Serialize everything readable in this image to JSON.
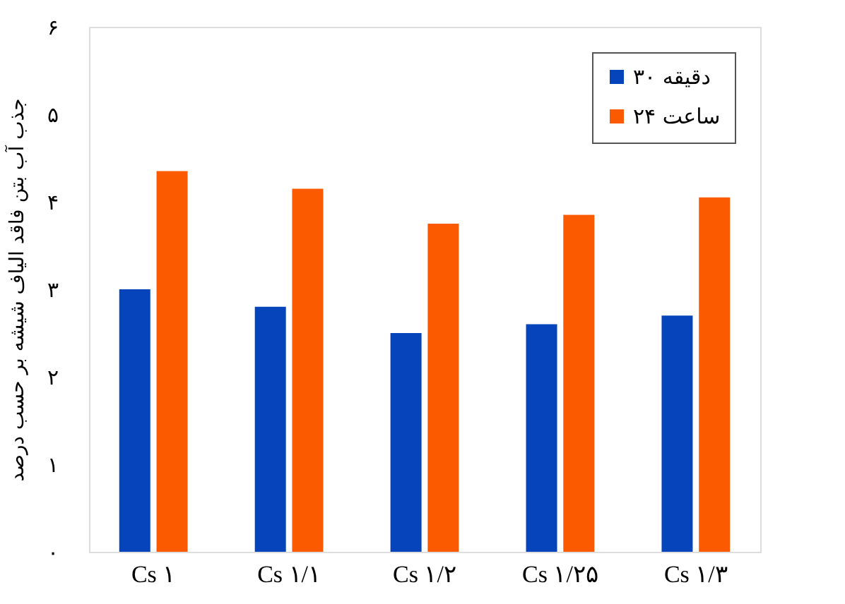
{
  "chart_data": {
    "type": "bar",
    "ylabel": "جذب آب بتن فاقد الیاف شیشه بر حسب درصد",
    "categories": [
      "Cs ۱",
      "Cs ۱/۱",
      "Cs ۱/۲",
      "Cs ۱/۲۵",
      "Cs ۱/۳"
    ],
    "series": [
      {
        "name": "۳۰ دقیقه",
        "color": "#0544bb",
        "values": [
          3.0,
          2.8,
          2.5,
          2.6,
          2.7
        ]
      },
      {
        "name": "۲۴ ساعت",
        "color": "#fb5a00",
        "values": [
          4.35,
          4.15,
          3.75,
          3.85,
          4.05
        ]
      }
    ],
    "ylim": [
      0,
      6
    ],
    "yticks": [
      {
        "value": 0,
        "label": "۰"
      },
      {
        "value": 1,
        "label": "۱"
      },
      {
        "value": 2,
        "label": "۲"
      },
      {
        "value": 3,
        "label": "۳"
      },
      {
        "value": 4,
        "label": "۴"
      },
      {
        "value": 5,
        "label": "۵"
      },
      {
        "value": 6,
        "label": "۶"
      }
    ],
    "grid": false,
    "legend": "top right"
  }
}
